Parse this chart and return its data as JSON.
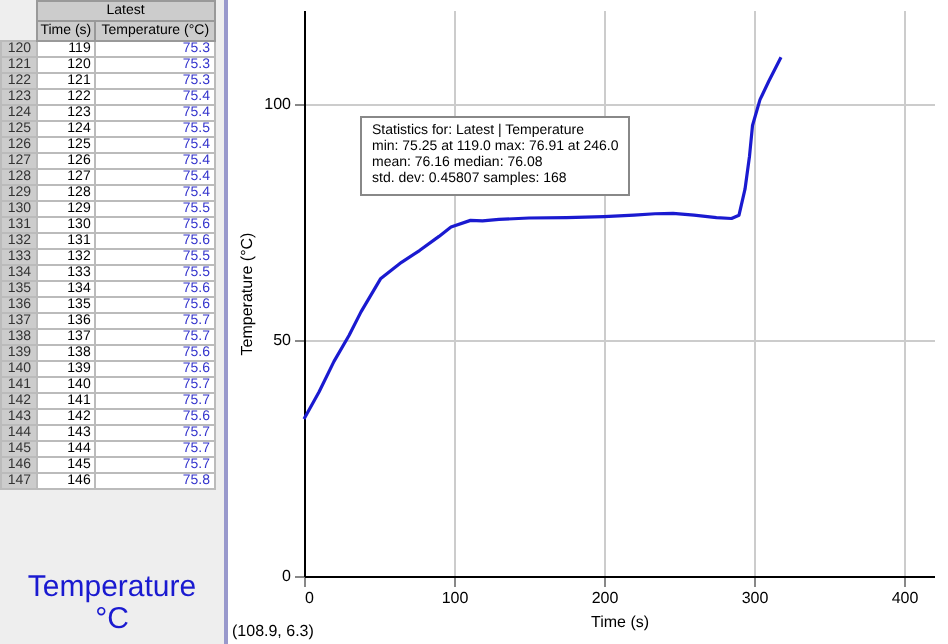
{
  "chart_data": {
    "type": "line",
    "xlabel": "Time (s)",
    "ylabel": "Temperature (°C)",
    "x": [
      0,
      10,
      20,
      30,
      38,
      51,
      65,
      77,
      90,
      98,
      111,
      119,
      130,
      150,
      175,
      200,
      220,
      234,
      246,
      260,
      275,
      285,
      290,
      294,
      297,
      299,
      304,
      310,
      318
    ],
    "series": [
      {
        "color": "#1a1ad0",
        "values": [
          33.3,
          39,
          45.5,
          51,
          56,
          63,
          66.5,
          69,
          72,
          74,
          75.4,
          75.3,
          75.6,
          75.9,
          76.0,
          76.2,
          76.5,
          76.8,
          76.9,
          76.5,
          76.0,
          75.8,
          76.5,
          82,
          89,
          95.5,
          101,
          105,
          110
        ]
      }
    ],
    "xlim": [
      0,
      420
    ],
    "ylim": [
      0,
      120
    ],
    "xticks": [
      0,
      100,
      200,
      300,
      400
    ],
    "yticks": [
      0,
      50,
      100
    ],
    "grid": true,
    "marker": "none",
    "line_style": "solid",
    "legend": false,
    "annotations": [
      "Statistics for: Latest | Temperature",
      "min: 75.25 at 119.0 max: 76.91 at 246.0",
      "mean: 76.16 median: 76.08",
      "std. dev: 0.45807 samples: 168",
      "(108.9, 6.3)",
      "Latest",
      "Time (s)",
      "Temperature (°C)",
      "120 119 75.3",
      "121 120 75.3",
      "122 121 75.3",
      "123 122 75.4",
      "124 123 75.4",
      "125 124 75.5",
      "126 125 75.4",
      "127 126 75.4",
      "128 127 75.4",
      "129 128 75.4",
      "130 129 75.5",
      "131 130 75.6",
      "132 131 75.6",
      "133 132 75.5",
      "134 133 75.5",
      "135 134 75.6",
      "136 135 75.6",
      "137 136 75.7",
      "138 137 75.7",
      "139 138 75.6",
      "140 139 75.6",
      "141 140 75.7",
      "142 141 75.7",
      "143 142 75.6",
      "144 143 75.7",
      "145 144 75.7",
      "146 145 75.7",
      "147 146 75.8",
      "Temperature °C"
    ]
  }
}
